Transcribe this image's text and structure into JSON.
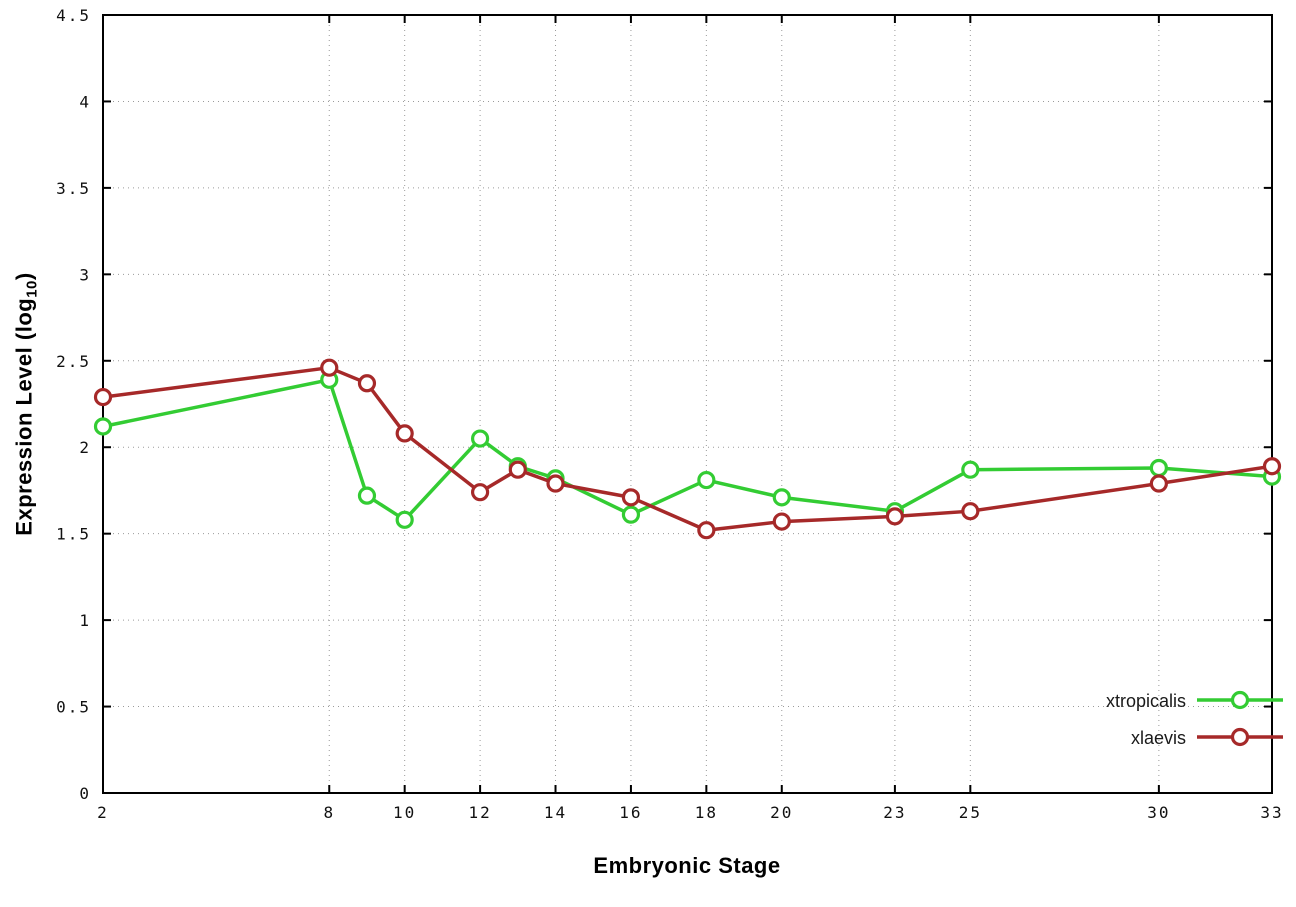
{
  "chart_data": {
    "type": "line",
    "title": "",
    "xlabel": "Embryonic Stage",
    "ylabel": "Expression Level (log10)",
    "ylabel_parts": {
      "main": "Expression Level (log",
      "sub": "10",
      "end": ")"
    },
    "xlim": [
      2,
      33
    ],
    "ylim": [
      0,
      4.5
    ],
    "xticks": [
      2,
      8,
      10,
      12,
      14,
      16,
      18,
      20,
      23,
      25,
      30,
      33
    ],
    "yticks": [
      0,
      0.5,
      1,
      1.5,
      2,
      2.5,
      3,
      3.5,
      4,
      4.5
    ],
    "ytick_labels": [
      "0",
      "0.5",
      "1",
      "1.5",
      "2",
      "2.5",
      "3",
      "3.5",
      "4",
      "4.5"
    ],
    "grid": true,
    "grid_color": "#9a9a9a",
    "axis_color": "#000000",
    "legend_position": "bottom-right",
    "marker": "open-circle",
    "x": [
      2,
      8,
      9,
      10,
      12,
      13,
      14,
      16,
      18,
      20,
      23,
      25,
      30,
      33
    ],
    "series": [
      {
        "name": "xtropicalis",
        "color": "#33cc33",
        "values": [
          2.12,
          2.39,
          1.72,
          1.58,
          2.05,
          1.89,
          1.82,
          1.61,
          1.81,
          1.71,
          1.63,
          1.87,
          1.88,
          1.83
        ]
      },
      {
        "name": "xlaevis",
        "color": "#a62929",
        "values": [
          2.29,
          2.46,
          2.37,
          2.08,
          1.74,
          1.87,
          1.79,
          1.71,
          1.52,
          1.57,
          1.6,
          1.63,
          1.79,
          1.89
        ]
      }
    ]
  }
}
